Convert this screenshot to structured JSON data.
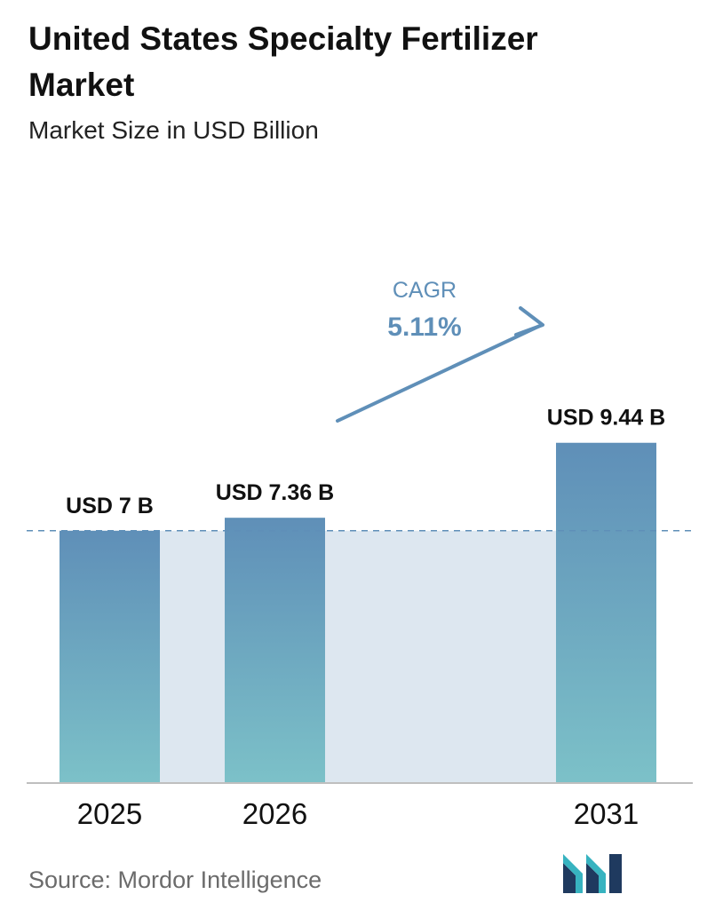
{
  "title": "United States Specialty Fertilizer Market",
  "subtitle": "Market Size in USD Billion",
  "source": "Source:  Mordor Intelligence",
  "colors": {
    "bar_top": "#5f8fb8",
    "bar_bottom": "#7cc1c8",
    "band": "#dde7f0",
    "cagr_arrow": "#5f8fb8",
    "cagr_text": "#5f8fb8",
    "dashed_line": "#5f8fb8",
    "axis": "#bfbfbf",
    "logo_dark": "#1f3a5f",
    "logo_teal": "#37b3c0"
  },
  "chart_data": {
    "type": "bar",
    "categories": [
      "2025",
      "2026",
      "2031"
    ],
    "values": [
      7,
      7.36,
      9.44
    ],
    "data_labels": [
      "USD 7 B",
      "USD 7.36 B",
      "USD 9.44 B"
    ],
    "unit": "USD Billion",
    "ylim": [
      0,
      10
    ],
    "grid": false,
    "reference_line": 7,
    "annotation": {
      "label": "CAGR",
      "value": "5.11%",
      "from": "2026",
      "to": "2031"
    }
  }
}
